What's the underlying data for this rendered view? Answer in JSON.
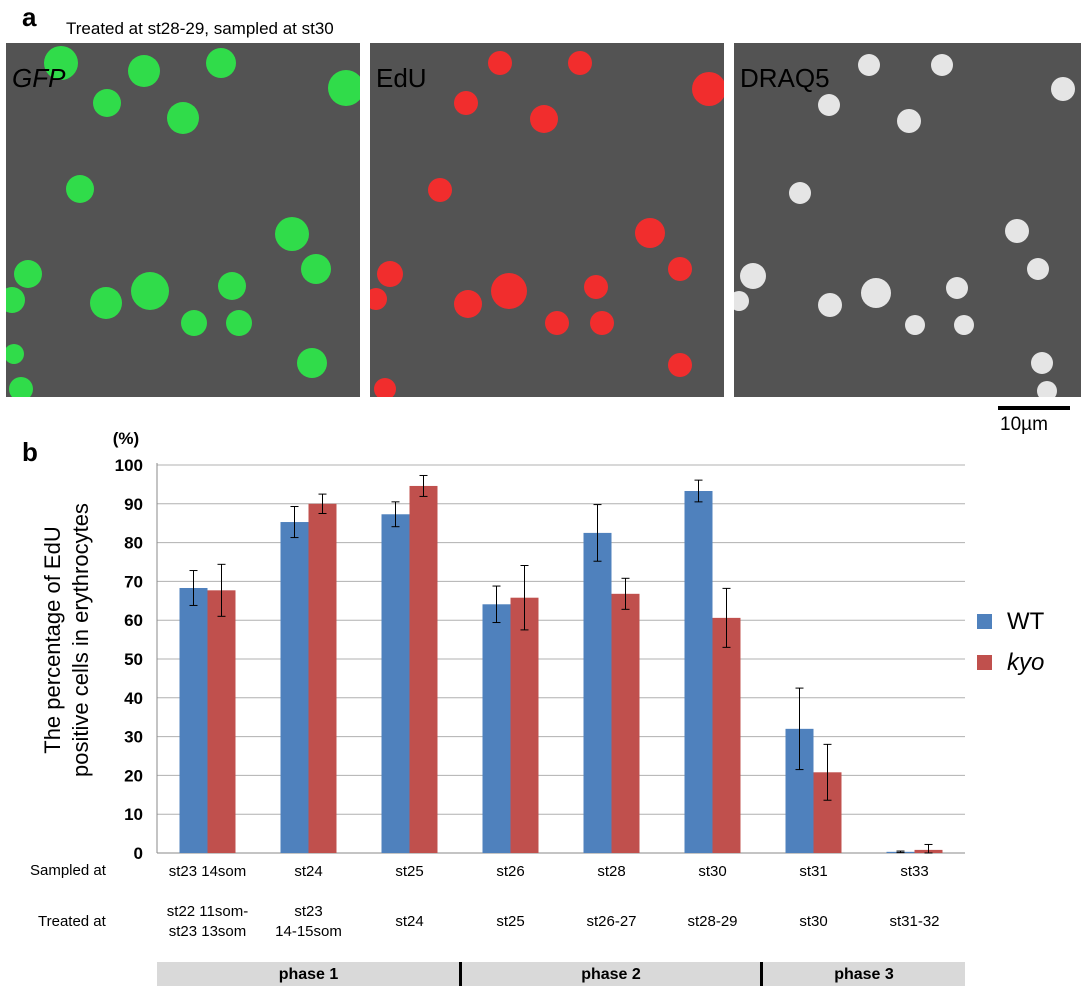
{
  "panel_a": {
    "letter": "a",
    "caption": "Treated at st28-29, sampled at st30",
    "images": [
      {
        "label": "GFP",
        "label_color": "#27c23a",
        "nucleus_color": "#2ee84a"
      },
      {
        "label": "EdU",
        "label_color": "#e41c1c",
        "nucleus_color": "#ff2a2a"
      },
      {
        "label": "DRAQ5",
        "label_color": "#ffffff",
        "nucleus_color": "#f2f2f2"
      }
    ],
    "scale_bar_label": "10µm"
  },
  "panel_b": {
    "letter": "b",
    "row_header_sampled": "Sampled at",
    "row_header_treated": "Treated at",
    "treated_at": [
      [
        "st22 11som-",
        "st23 13som"
      ],
      [
        "st23",
        "14-15som"
      ],
      [
        "st24"
      ],
      [
        "st25"
      ],
      [
        "st26-27"
      ],
      [
        "st28-29"
      ],
      [
        "st30"
      ],
      [
        "st31-32"
      ]
    ],
    "phases": [
      {
        "label": "phase 1"
      },
      {
        "label": "phase 2"
      },
      {
        "label": "phase 3"
      }
    ]
  },
  "chart_data": {
    "type": "bar",
    "ylabel_lines": [
      "The percentage of EdU",
      "positive cells in erythrocytes"
    ],
    "y_unit": "(%)",
    "ylim": [
      0,
      100
    ],
    "ytick_step": 10,
    "grid": true,
    "legend_position": "right",
    "categories": [
      "st23 14som",
      "st24",
      "st25",
      "st26",
      "st28",
      "st30",
      "st31",
      "st33"
    ],
    "series": [
      {
        "name": "WT",
        "color": "#4f81bd",
        "italic": false,
        "values": [
          68.3,
          85.3,
          87.3,
          64.1,
          82.5,
          93.3,
          32.0,
          0.3
        ],
        "errors": [
          4.5,
          4.0,
          3.2,
          4.7,
          7.3,
          2.8,
          10.5,
          0.2
        ]
      },
      {
        "name": "kyo",
        "color": "#c0504d",
        "italic": true,
        "values": [
          67.7,
          90.0,
          94.6,
          65.8,
          66.8,
          60.6,
          20.8,
          0.8
        ],
        "errors": [
          6.7,
          2.5,
          2.7,
          8.3,
          4.0,
          7.6,
          7.2,
          1.4
        ]
      }
    ]
  }
}
